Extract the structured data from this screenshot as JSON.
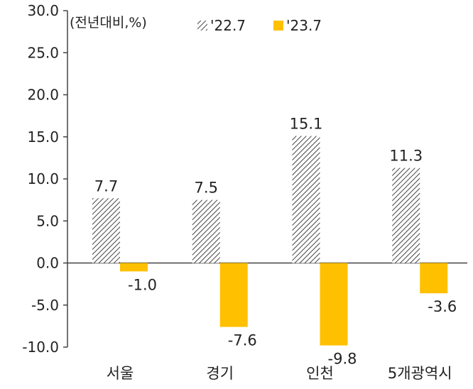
{
  "chart_data": {
    "type": "bar",
    "unit_label": "(전년대비,%)",
    "categories": [
      "서울",
      "경기",
      "인천",
      "5개광역시"
    ],
    "series": [
      {
        "name": "'22.7",
        "values": [
          7.7,
          7.5,
          15.1,
          11.3
        ],
        "value_labels": [
          "7.7",
          "7.5",
          "15.1",
          "11.3"
        ],
        "fill": "hatched",
        "color": "#444444"
      },
      {
        "name": "'23.7",
        "values": [
          -1.0,
          -7.6,
          -9.8,
          -3.6
        ],
        "value_labels": [
          "-1.0",
          "-7.6",
          "-9.8",
          "-3.6"
        ],
        "fill": "solid",
        "color": "#FFC000"
      }
    ],
    "yticks": [
      "30.0",
      "25.0",
      "20.0",
      "15.0",
      "10.0",
      "5.0",
      "0.0",
      "-5.0",
      "-10.0"
    ],
    "ylim": [
      -10,
      30
    ],
    "grid": false,
    "legend": "top"
  }
}
